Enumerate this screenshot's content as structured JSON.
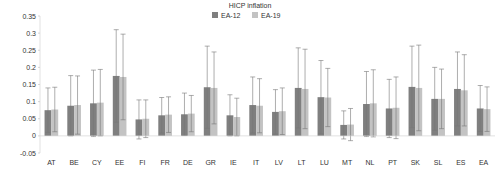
{
  "chart_data": {
    "type": "bar",
    "title": "HICP inflation",
    "categories": [
      "AT",
      "BE",
      "CY",
      "EE",
      "FI",
      "FR",
      "DE",
      "GR",
      "IE",
      "IT",
      "LV",
      "LT",
      "LU",
      "MT",
      "NL",
      "PT",
      "SK",
      "SL",
      "ES",
      "EA"
    ],
    "series": [
      {
        "name": "EA-12",
        "color": "#7f7f7f",
        "values": [
          0.075,
          0.088,
          0.095,
          0.175,
          0.048,
          0.06,
          0.063,
          0.142,
          0.06,
          0.09,
          0.07,
          0.14,
          0.113,
          0.032,
          0.093,
          0.08,
          0.143,
          0.108,
          0.137,
          0.08
        ],
        "errors": [
          0.065,
          0.088,
          0.097,
          0.135,
          0.057,
          0.052,
          0.062,
          0.12,
          0.06,
          0.082,
          0.065,
          0.117,
          0.107,
          0.041,
          0.095,
          0.085,
          0.119,
          0.092,
          0.108,
          0.067
        ]
      },
      {
        "name": "EA-19",
        "color": "#c3c3c3",
        "values": [
          0.077,
          0.09,
          0.097,
          0.172,
          0.05,
          0.062,
          0.065,
          0.14,
          0.055,
          0.088,
          0.072,
          0.137,
          0.112,
          0.033,
          0.095,
          0.082,
          0.14,
          0.108,
          0.133,
          0.078
        ],
        "errors": [
          0.065,
          0.085,
          0.097,
          0.125,
          0.055,
          0.052,
          0.053,
          0.105,
          0.055,
          0.079,
          0.068,
          0.116,
          0.085,
          0.047,
          0.098,
          0.09,
          0.125,
          0.087,
          0.104,
          0.065
        ]
      }
    ],
    "ylim": [
      -0.05,
      0.35
    ],
    "yticks": [
      -0.05,
      0,
      0.05,
      0.1,
      0.15,
      0.2,
      0.25,
      0.3,
      0.35
    ],
    "grid": false,
    "legend": "top"
  }
}
